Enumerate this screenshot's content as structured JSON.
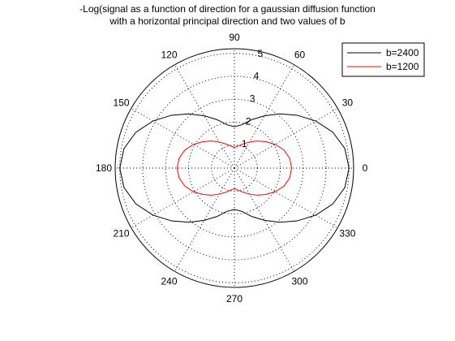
{
  "chart_data": {
    "type": "polar-line",
    "title_lines": [
      "-Log(signal as a function of direction for a gaussian diffusion function",
      "with a horizontal principal direction and two values of b"
    ],
    "radial_ticks": [
      "1",
      "2",
      "3",
      "4",
      "5"
    ],
    "radial_tick_values": [
      1,
      2,
      3,
      4,
      5
    ],
    "rmax": 5.2,
    "angle_labels": [
      "0",
      "30",
      "60",
      "90",
      "120",
      "150",
      "180",
      "210",
      "240",
      "270",
      "300",
      "330"
    ],
    "angle_degrees": [
      0,
      30,
      60,
      90,
      120,
      150,
      180,
      210,
      240,
      270,
      300,
      330
    ],
    "grid": true,
    "legend_position": "top-right",
    "series": [
      {
        "name": "b=2400",
        "color": "#000000",
        "theta_deg": [
          0,
          10,
          20,
          30,
          40,
          50,
          60,
          70,
          80,
          90,
          100,
          110,
          120,
          130,
          140,
          150,
          160,
          170,
          180,
          190,
          200,
          210,
          220,
          230,
          240,
          250,
          260,
          270,
          280,
          290,
          300,
          310,
          320,
          330,
          340,
          350
        ],
        "r": [
          5.0,
          4.89,
          4.57,
          4.1,
          3.58,
          3.08,
          2.63,
          2.25,
          1.92,
          1.8,
          1.92,
          2.25,
          2.63,
          3.08,
          3.58,
          4.1,
          4.57,
          4.89,
          5.0,
          4.89,
          4.57,
          4.1,
          3.58,
          3.08,
          2.63,
          2.25,
          1.92,
          1.8,
          1.92,
          2.25,
          2.63,
          3.08,
          3.58,
          4.1,
          4.57,
          4.89
        ]
      },
      {
        "name": "b=1200",
        "color": "#ff0000",
        "theta_deg": [
          0,
          10,
          20,
          30,
          40,
          50,
          60,
          70,
          80,
          90,
          100,
          110,
          120,
          130,
          140,
          150,
          160,
          170,
          180,
          190,
          200,
          210,
          220,
          230,
          240,
          250,
          260,
          270,
          280,
          290,
          300,
          310,
          320,
          330,
          340,
          350
        ],
        "r": [
          2.5,
          2.45,
          2.3,
          2.06,
          1.79,
          1.54,
          1.31,
          1.12,
          0.98,
          0.9,
          0.98,
          1.12,
          1.31,
          1.54,
          1.79,
          2.06,
          2.3,
          2.45,
          2.5,
          2.45,
          2.3,
          2.06,
          1.79,
          1.54,
          1.31,
          1.12,
          0.98,
          0.9,
          0.98,
          1.12,
          1.31,
          1.54,
          1.79,
          2.06,
          2.3,
          2.45
        ]
      }
    ]
  }
}
